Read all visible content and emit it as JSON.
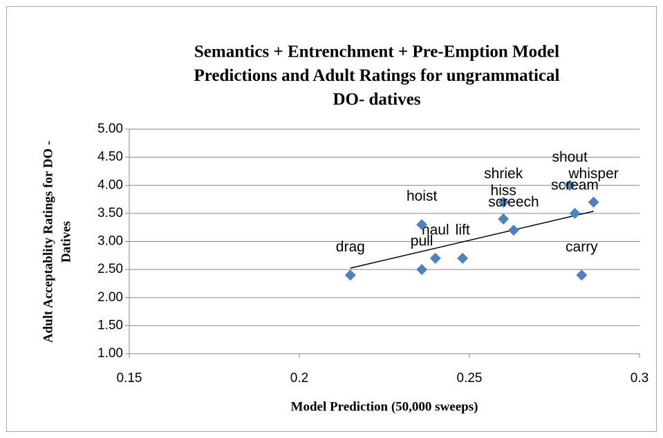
{
  "chart_data": {
    "type": "scatter",
    "title": [
      "Semantics + Entrenchment + Pre-Emption Model",
      "Predictions and Adult Ratings for ungrammatical",
      "DO- datives"
    ],
    "x_label": "Model Prediction (50,000 sweeps)",
    "y_label": [
      "Adult Acceptablity Ratings for DO -",
      "Datives"
    ],
    "point_labels": [
      "drag",
      "pull",
      "haul",
      "lift",
      "hoist",
      "shriek",
      "hiss",
      "screech",
      "shout",
      "scream",
      "whisper",
      "carry"
    ],
    "x": [
      0.215,
      0.236,
      0.24,
      0.248,
      0.236,
      0.26,
      0.26,
      0.263,
      0.2795,
      0.281,
      0.2865,
      0.283
    ],
    "values": [
      2.4,
      2.5,
      2.7,
      2.7,
      3.3,
      3.7,
      3.4,
      3.2,
      4.0,
      3.5,
      3.7,
      2.4
    ],
    "color": "#4f81bd",
    "trendline": true,
    "xlim": [
      0.15,
      0.3
    ],
    "xticks": [
      0.15,
      0.2,
      0.25,
      0.3
    ],
    "ylim": [
      1,
      5
    ],
    "yticks": [
      {
        "value": 1,
        "label": "1.00"
      },
      {
        "value": 1.5,
        "label": "1.50"
      },
      {
        "value": 2,
        "label": "2.00"
      },
      {
        "value": 2.5,
        "label": "2.50"
      },
      {
        "value": 3,
        "label": "3.00"
      },
      {
        "value": 3.5,
        "label": "3.50"
      },
      {
        "value": 4,
        "label": "4.00"
      },
      {
        "value": 4.5,
        "label": "4.50"
      },
      {
        "value": 5,
        "label": "5.00"
      }
    ],
    "grid": true
  }
}
